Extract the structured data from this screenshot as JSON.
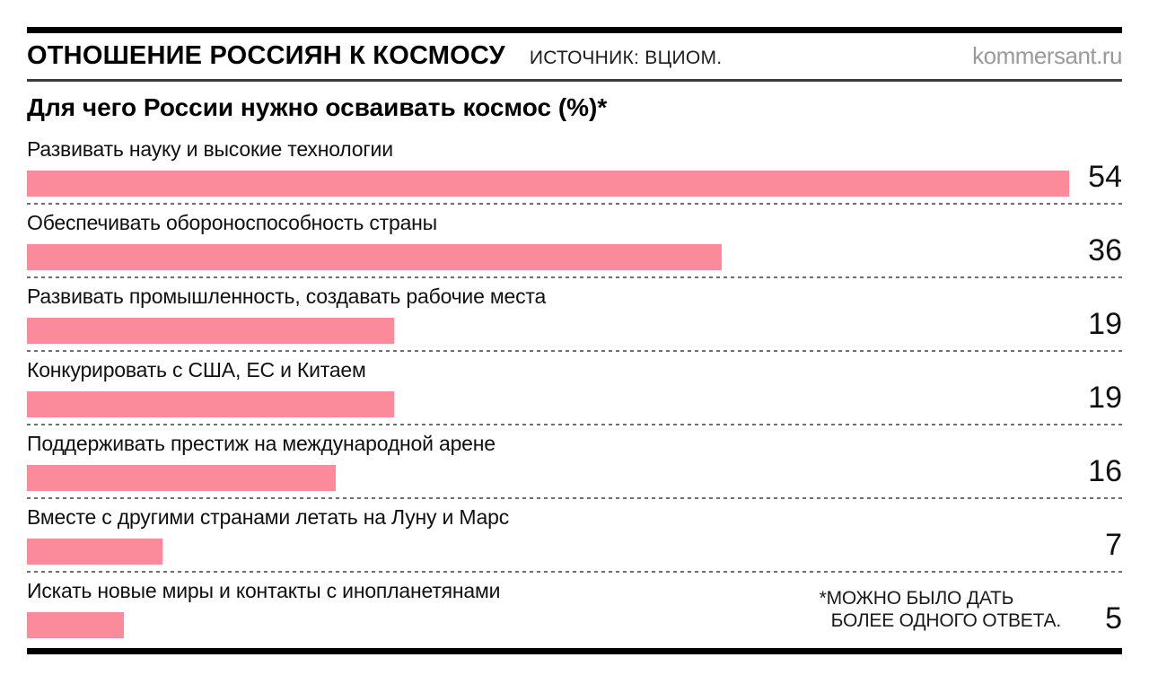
{
  "header": {
    "title": "ОТНОШЕНИЕ РОССИЯН К КОСМОСУ",
    "source": "ИСТОЧНИК: ВЦИОМ.",
    "site": "kommersant.ru"
  },
  "chart_data": {
    "type": "bar",
    "orientation": "horizontal",
    "title": "Для чего России нужно осваивать космос (%)*",
    "categories": [
      "Развивать науку и высокие технологии",
      "Обеспечивать обороноспособность страны",
      "Развивать промышленность, создавать рабочие места",
      "Конкурировать с США, ЕС и Китаем",
      "Поддерживать престиж на международной арене",
      "Вместе с другими странами летать на Луну и Марс",
      "Искать новые миры и контакты с инопланетянами"
    ],
    "values": [
      54,
      36,
      19,
      19,
      16,
      7,
      5
    ],
    "xlim": [
      0,
      57
    ],
    "grid": "dotted-row-separators",
    "legend_position": "none",
    "value_labels": "right-aligned",
    "colors": {
      "bar": "#FB8B9B",
      "value_text": "#111111",
      "separator": "#6f6f6f",
      "rule": "#000000",
      "site_text": "#9a9a9a"
    }
  },
  "footnote": {
    "line1": "*МОЖНО БЫЛО ДАТЬ",
    "line2": "БОЛЕЕ ОДНОГО ОТВЕТА."
  }
}
